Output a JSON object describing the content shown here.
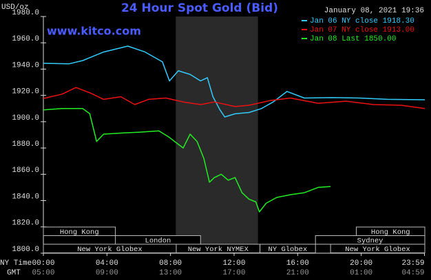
{
  "chart_data": {
    "type": "line",
    "title": "24 Hour Spot Gold (Bid)",
    "y_label": "USD/oz",
    "timestamp": "January 08, 2021 19:36",
    "watermark": "www.kitco.com",
    "x_row_label": "NY Time",
    "x2_row_label": "GMT",
    "xlim": [
      0,
      24
    ],
    "xticks": [
      {
        "value": 0,
        "label": "00:00"
      },
      {
        "value": 4,
        "label": "04:00"
      },
      {
        "value": 8,
        "label": "08:00"
      },
      {
        "value": 12,
        "label": "12:00"
      },
      {
        "value": 16,
        "label": "16:00"
      },
      {
        "value": 20,
        "label": "20:00"
      },
      {
        "value": 23.98,
        "label": "23:59"
      }
    ],
    "x2ticklabels": [
      "05:00",
      "09:00",
      "13:00",
      "17:00",
      "21:00",
      "01:00",
      "04:59"
    ],
    "ylim": [
      1800,
      1980
    ],
    "yticks": [
      {
        "value": 1800,
        "label": "1800.0"
      },
      {
        "value": 1820,
        "label": "1820.0"
      },
      {
        "value": 1840,
        "label": "1840.0"
      },
      {
        "value": 1860,
        "label": "1860.0"
      },
      {
        "value": 1880,
        "label": "1880.0"
      },
      {
        "value": 1900,
        "label": "1900.0"
      },
      {
        "value": 1920,
        "label": "1920.0"
      },
      {
        "value": 1940,
        "label": "1940.0"
      },
      {
        "value": 1960,
        "label": "1960.0"
      },
      {
        "value": 1980,
        "label": "1980.0"
      }
    ],
    "shaded_xrange": [
      8.33,
      13.5
    ],
    "series": [
      {
        "name": "Jan 06 NY close 1918.30",
        "color": "#33ccff",
        "x": [
          0,
          1.61,
          2.48,
          3.79,
          5.31,
          6.4,
          7.49,
          7.93,
          8.49,
          9.23,
          9.89,
          10.32,
          10.67,
          11.11,
          11.41,
          12.06,
          12.94,
          13.72,
          14.46,
          15.33,
          16.42,
          18.16,
          19.9,
          21.65,
          24
        ],
        "values": [
          1944.4,
          1944,
          1946.5,
          1953,
          1957.5,
          1953,
          1945.5,
          1931,
          1938.7,
          1936,
          1931,
          1933.5,
          1919,
          1909,
          1903.6,
          1906,
          1907,
          1910,
          1915,
          1923,
          1918,
          1918.3,
          1918,
          1917,
          1916.7
        ]
      },
      {
        "name": "Jan 07 NY close 1913.00",
        "color": "#ee1111",
        "x": [
          0,
          1.18,
          2.05,
          2.92,
          3.79,
          4.88,
          5.75,
          6.62,
          7.71,
          8.8,
          9.89,
          10.76,
          12.06,
          12.94,
          14.24,
          15.55,
          17.29,
          19.03,
          20.77,
          22.52,
          24
        ],
        "values": [
          1917.7,
          1921,
          1926,
          1922,
          1917,
          1919,
          1913,
          1917,
          1918,
          1915,
          1913,
          1915,
          1911.5,
          1912.5,
          1916,
          1918,
          1914,
          1915.6,
          1913,
          1912.5,
          1910
        ]
      },
      {
        "name": "Jan 08 Last 1850.00",
        "color": "#22ee22",
        "x": [
          0,
          1.18,
          2.48,
          2.92,
          3.35,
          3.79,
          5.1,
          5.97,
          7.27,
          7.93,
          8.36,
          8.8,
          9.23,
          9.67,
          10.1,
          10.45,
          10.76,
          11.19,
          11.63,
          12.06,
          12.5,
          12.94,
          13.37,
          13.59,
          14.02,
          14.68,
          15.55,
          16.42,
          17.29,
          18.07
        ],
        "values": [
          1909,
          1910,
          1910,
          1906,
          1885,
          1890.5,
          1891.5,
          1892,
          1893,
          1888,
          1884,
          1880,
          1890.5,
          1885,
          1872,
          1854,
          1857.5,
          1860,
          1855.5,
          1857.5,
          1846,
          1841,
          1839,
          1831.4,
          1838,
          1842.4,
          1844.5,
          1846,
          1850,
          1850.7
        ]
      }
    ],
    "sessions": [
      {
        "label": "Hong Kong",
        "start": 0,
        "end": 4.53,
        "row": 0
      },
      {
        "label": "Hong Kong",
        "start": 19.69,
        "end": 24,
        "row": 0
      },
      {
        "label": "London",
        "start": 4.53,
        "end": 9.89,
        "row": 1
      },
      {
        "label": "Sydney",
        "start": 17.12,
        "end": 24,
        "row": 1
      },
      {
        "label": "New York Globex",
        "start": 0,
        "end": 8.36,
        "row": 2
      },
      {
        "label": "New York NYMEX",
        "start": 8.36,
        "end": 13.63,
        "row": 2
      },
      {
        "label": "NY Globex",
        "start": 13.63,
        "end": 17.12,
        "row": 2
      },
      {
        "label": "New York Globex",
        "start": 18.07,
        "end": 24,
        "row": 2
      }
    ]
  }
}
